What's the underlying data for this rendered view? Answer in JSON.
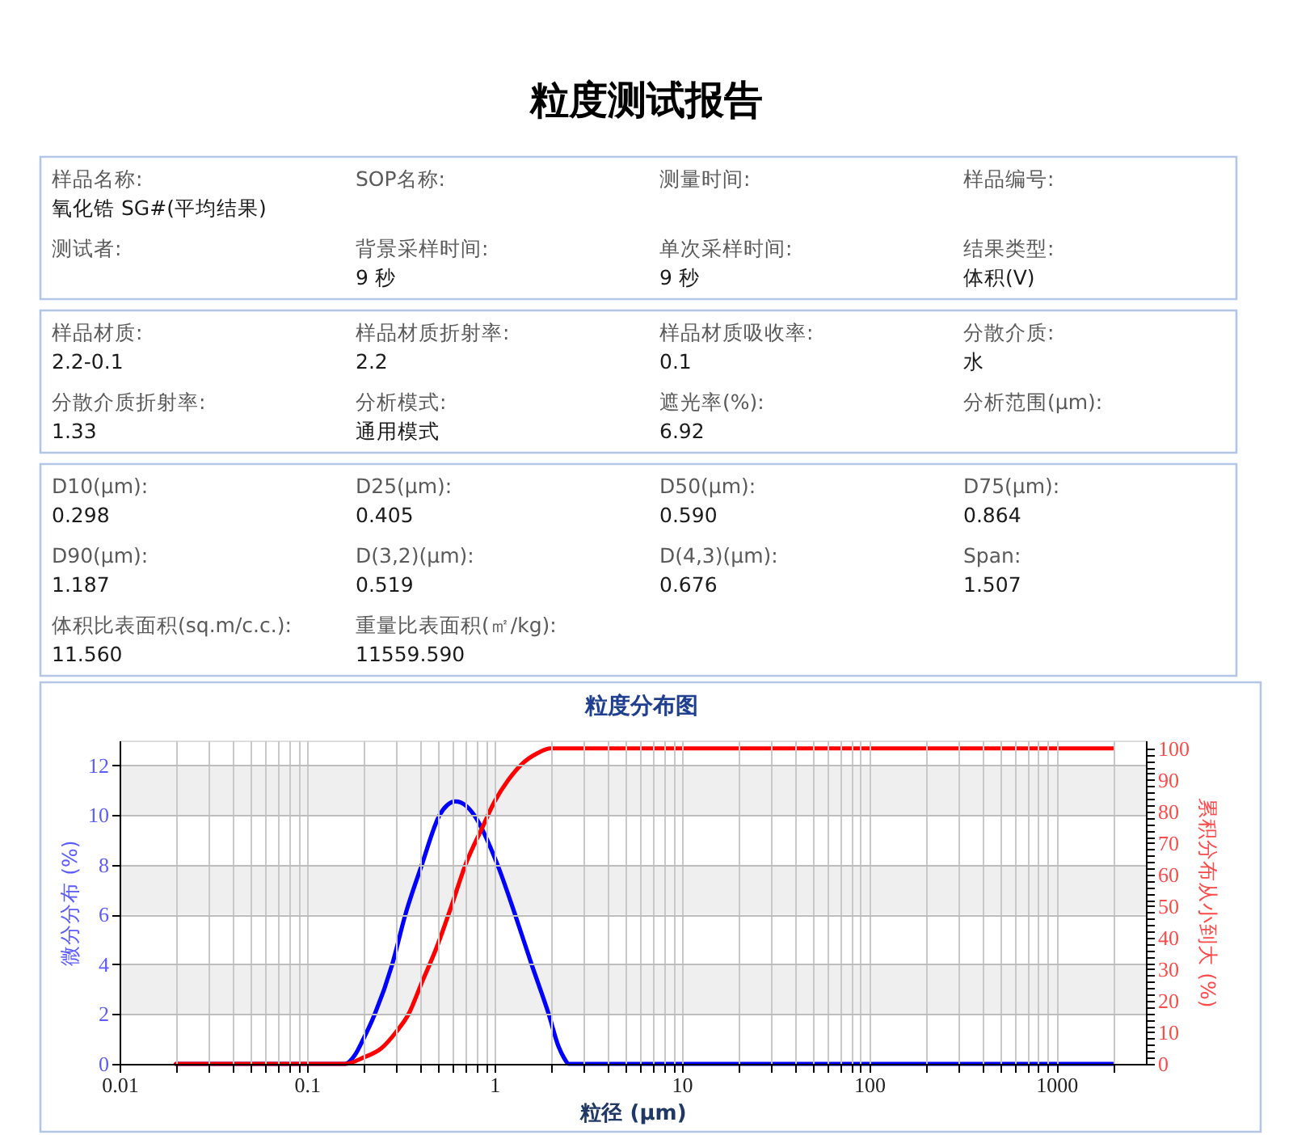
{
  "chart_data": [
    {
      "type": "other",
      "title": "粒度测试报告",
      "annotations": [
        "样品名称:\n氧化锆 SG#(平均结果)",
        "SOP名称:",
        "测量时间:",
        "样品编号:",
        "测试者:",
        "背景采样时间:\n9 秒",
        "单次采样时间:\n9 秒",
        "结果类型:\n体积(V)"
      ]
    },
    {
      "type": "other",
      "annotations": [
        "样品材质:\n2.2-0.1",
        "样品材质折射率:\n2.2",
        "样品材质吸收率:\n0.1",
        "分散介质:\n水",
        "分散介质折射率:\n1.33",
        "分析模式:\n通用模式",
        "遮光率(%):\n6.92",
        "分析范围(μm):"
      ]
    },
    {
      "type": "other",
      "annotations": [
        "D10(μm):\n0.298",
        "D25(μm):\n0.405",
        "D50(μm):\n0.590",
        "D75(μm):\n0.864",
        "D90(μm):\n1.187",
        "D(3,2)(μm):\n0.519",
        "D(4,3)(μm):\n0.676",
        "Span:\n1.507",
        "体积比表面积(sq.m/c.c.):\n11.560",
        "重量比表面积(㎡/kg):\n11559.590"
      ]
    },
    {
      "type": "line",
      "title": "粒度分布图",
      "xlabel": "粒径 (μm)",
      "ylabel": "微分分布 (%)",
      "y2label": "累积分布从小到大 (%)",
      "log": "x",
      "grid": true,
      "xlim": [
        0.01,
        3000
      ],
      "xticks": [
        0.01,
        {
          "value": 0.02,
          "label": null
        },
        {
          "value": 0.03,
          "label": null
        },
        {
          "value": 0.04,
          "label": null
        },
        {
          "value": 0.05,
          "label": null
        },
        {
          "value": 0.06,
          "label": null
        },
        {
          "value": 0.07,
          "label": null
        },
        {
          "value": 0.08,
          "label": null
        },
        {
          "value": 0.09,
          "label": null
        },
        0.1,
        {
          "value": 0.2,
          "label": null
        },
        {
          "value": 0.3,
          "label": null
        },
        {
          "value": 0.4,
          "label": null
        },
        {
          "value": 0.5,
          "label": null
        },
        {
          "value": 0.6,
          "label": null
        },
        {
          "value": 0.7,
          "label": null
        },
        {
          "value": 0.8,
          "label": null
        },
        {
          "value": 0.9,
          "label": null
        },
        1,
        {
          "value": 2,
          "label": null
        },
        {
          "value": 3,
          "label": null
        },
        {
          "value": 4,
          "label": null
        },
        {
          "value": 5,
          "label": null
        },
        {
          "value": 6,
          "label": null
        },
        {
          "value": 7,
          "label": null
        },
        {
          "value": 8,
          "label": null
        },
        {
          "value": 9,
          "label": null
        },
        10,
        {
          "value": 20,
          "label": null
        },
        {
          "value": 30,
          "label": null
        },
        {
          "value": 40,
          "label": null
        },
        {
          "value": 50,
          "label": null
        },
        {
          "value": 60,
          "label": null
        },
        {
          "value": 70,
          "label": null
        },
        {
          "value": 80,
          "label": null
        },
        {
          "value": 90,
          "label": null
        },
        100,
        {
          "value": 200,
          "label": null
        },
        {
          "value": 300,
          "label": null
        },
        {
          "value": 400,
          "label": null
        },
        {
          "value": 500,
          "label": null
        },
        {
          "value": 600,
          "label": null
        },
        {
          "value": 700,
          "label": null
        },
        {
          "value": 800,
          "label": null
        },
        {
          "value": 900,
          "label": null
        },
        1000,
        {
          "value": 2000,
          "label": null
        }
      ],
      "ylim": [
        0,
        13
      ],
      "yticks": [
        0,
        2,
        4,
        6,
        8,
        10,
        12
      ],
      "y2lim": [
        0,
        102.5
      ],
      "y2ticks": [
        0,
        {
          "value": 2,
          "label": null
        },
        {
          "value": 4,
          "label": null
        },
        {
          "value": 6,
          "label": null
        },
        {
          "value": 8,
          "label": null
        },
        10,
        {
          "value": 12,
          "label": null
        },
        {
          "value": 14,
          "label": null
        },
        {
          "value": 16,
          "label": null
        },
        {
          "value": 18,
          "label": null
        },
        20,
        {
          "value": 22,
          "label": null
        },
        {
          "value": 24,
          "label": null
        },
        {
          "value": 26,
          "label": null
        },
        {
          "value": 28,
          "label": null
        },
        30,
        {
          "value": 32,
          "label": null
        },
        {
          "value": 34,
          "label": null
        },
        {
          "value": 36,
          "label": null
        },
        {
          "value": 38,
          "label": null
        },
        40,
        {
          "value": 42,
          "label": null
        },
        {
          "value": 44,
          "label": null
        },
        {
          "value": 46,
          "label": null
        },
        {
          "value": 48,
          "label": null
        },
        50,
        {
          "value": 52,
          "label": null
        },
        {
          "value": 54,
          "label": null
        },
        {
          "value": 56,
          "label": null
        },
        {
          "value": 58,
          "label": null
        },
        60,
        {
          "value": 62,
          "label": null
        },
        {
          "value": 64,
          "label": null
        },
        {
          "value": 66,
          "label": null
        },
        {
          "value": 68,
          "label": null
        },
        70,
        {
          "value": 72,
          "label": null
        },
        {
          "value": 74,
          "label": null
        },
        {
          "value": 76,
          "label": null
        },
        {
          "value": 78,
          "label": null
        },
        80,
        {
          "value": 82,
          "label": null
        },
        {
          "value": 84,
          "label": null
        },
        {
          "value": 86,
          "label": null
        },
        {
          "value": 88,
          "label": null
        },
        90,
        {
          "value": 92,
          "label": null
        },
        {
          "value": 94,
          "label": null
        },
        {
          "value": 96,
          "label": null
        },
        {
          "value": 98,
          "label": null
        },
        100
      ],
      "bands": [
        {
          "axis": "y",
          "from": 2,
          "to": 4,
          "color": "#efefef"
        },
        {
          "axis": "y",
          "from": 6,
          "to": 8,
          "color": "#efefef"
        },
        {
          "axis": "y",
          "from": 10,
          "to": 12,
          "color": "#efefef"
        }
      ],
      "series": [
        {
          "color": "#0000ff",
          "x": [
            0.02,
            0.16,
            0.18,
            0.2,
            0.23,
            0.285,
            0.335,
            0.41,
            0.51,
            0.56,
            0.62,
            0.7,
            0.78,
            1.04,
            1.29,
            1.58,
            1.95,
            2.2,
            2.35,
            2.5,
            2000
          ],
          "values": [
            0,
            0,
            0.35,
            1.0,
            2,
            4,
            6,
            8,
            10,
            10.4,
            10.55,
            10.4,
            10,
            8,
            6,
            4,
            2,
            0.7,
            0.25,
            0,
            0
          ]
        },
        {
          "color": "#ff0000",
          "axis": "y2",
          "x": [
            0.02,
            0.16,
            0.2,
            0.25,
            0.298,
            0.35,
            0.405,
            0.5,
            0.59,
            0.7,
            0.864,
            1.0,
            1.187,
            1.4,
            1.7,
            2.0,
            2000
          ],
          "values": [
            0,
            0,
            2,
            5,
            10,
            16,
            25,
            38,
            50,
            63,
            75,
            83,
            90,
            95,
            98.5,
            100,
            100
          ]
        }
      ]
    }
  ]
}
